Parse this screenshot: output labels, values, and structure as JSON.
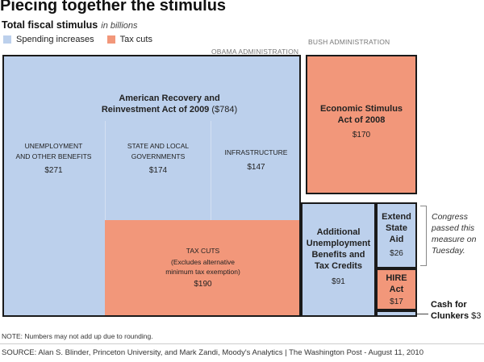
{
  "title": "Piecing together the stimulus",
  "subtitle": "Total fiscal stimulus",
  "units": "in billions",
  "legend": {
    "spending": {
      "label": "Spending increases",
      "color": "#bcd0ec"
    },
    "tax": {
      "label": "Tax cuts",
      "color": "#f2977a"
    }
  },
  "admins": {
    "obama": "OBAMA ADMINISTRATION",
    "bush": "BUSH ADMINISTRATION"
  },
  "arra": {
    "title_line1": "American Recovery and",
    "title_line2": "Reinvestment Act of 2009",
    "amount": "($784)"
  },
  "note": "NOTE: Numbers may not add up due to rounding.",
  "source": "SOURCE: Alan S. Blinder, Princeton University, and Mark Zandi, Moody's Analytics | The Washington Post - August 11, 2010",
  "annotation": {
    "line1": "Congress",
    "line2": "passed this",
    "line3": "measure on",
    "line4": "Tuesday."
  },
  "chart_data": {
    "type": "treemap",
    "title": "Piecing together the stimulus",
    "subtitle": "Total fiscal stimulus in billions",
    "groups": [
      {
        "name": "American Recovery and Reinvestment Act of 2009",
        "total": 784,
        "administration": "OBAMA ADMINISTRATION",
        "items": [
          {
            "line1": "UNEMPLOYMENT",
            "line2": "AND OTHER BENEFITS",
            "value": 271,
            "value_label": "$271",
            "kind": "spending"
          },
          {
            "line1": "STATE AND LOCAL",
            "line2": "GOVERNMENTS",
            "value": 174,
            "value_label": "$174",
            "kind": "spending"
          },
          {
            "line1": "INFRASTRUCTURE",
            "value": 147,
            "value_label": "$147",
            "kind": "spending"
          },
          {
            "line1": "TAX CUTS",
            "line2": "(Excludes alternative",
            "line3": "minimum tax exemption)",
            "value": 190,
            "value_label": "$190",
            "kind": "tax"
          }
        ]
      },
      {
        "name": "Economic Stimulus Act of 2008",
        "line1": "Economic Stimulus",
        "line2": "Act of 2008",
        "value": 170,
        "value_label": "$170",
        "kind": "tax",
        "administration": "BUSH ADMINISTRATION"
      },
      {
        "name": "Additional Unemployment Benefits and Tax Credits",
        "line1": "Additional",
        "line2": "Unemployment",
        "line3": "Benefits and",
        "line4": "Tax Credits",
        "value": 91,
        "value_label": "$91",
        "kind": "spending"
      },
      {
        "name": "Extend State Aid",
        "line1": "Extend",
        "line2": "State",
        "line3": "Aid",
        "value": 26,
        "value_label": "$26",
        "kind": "spending"
      },
      {
        "name": "HIRE Act",
        "line1": "HIRE",
        "line2": "Act",
        "value": 17,
        "value_label": "$17",
        "kind": "tax"
      },
      {
        "name": "Cash for Clunkers",
        "line1": "Cash for",
        "line2": "Clunkers",
        "value": 3,
        "value_label": "$3",
        "kind": "spending"
      }
    ]
  }
}
